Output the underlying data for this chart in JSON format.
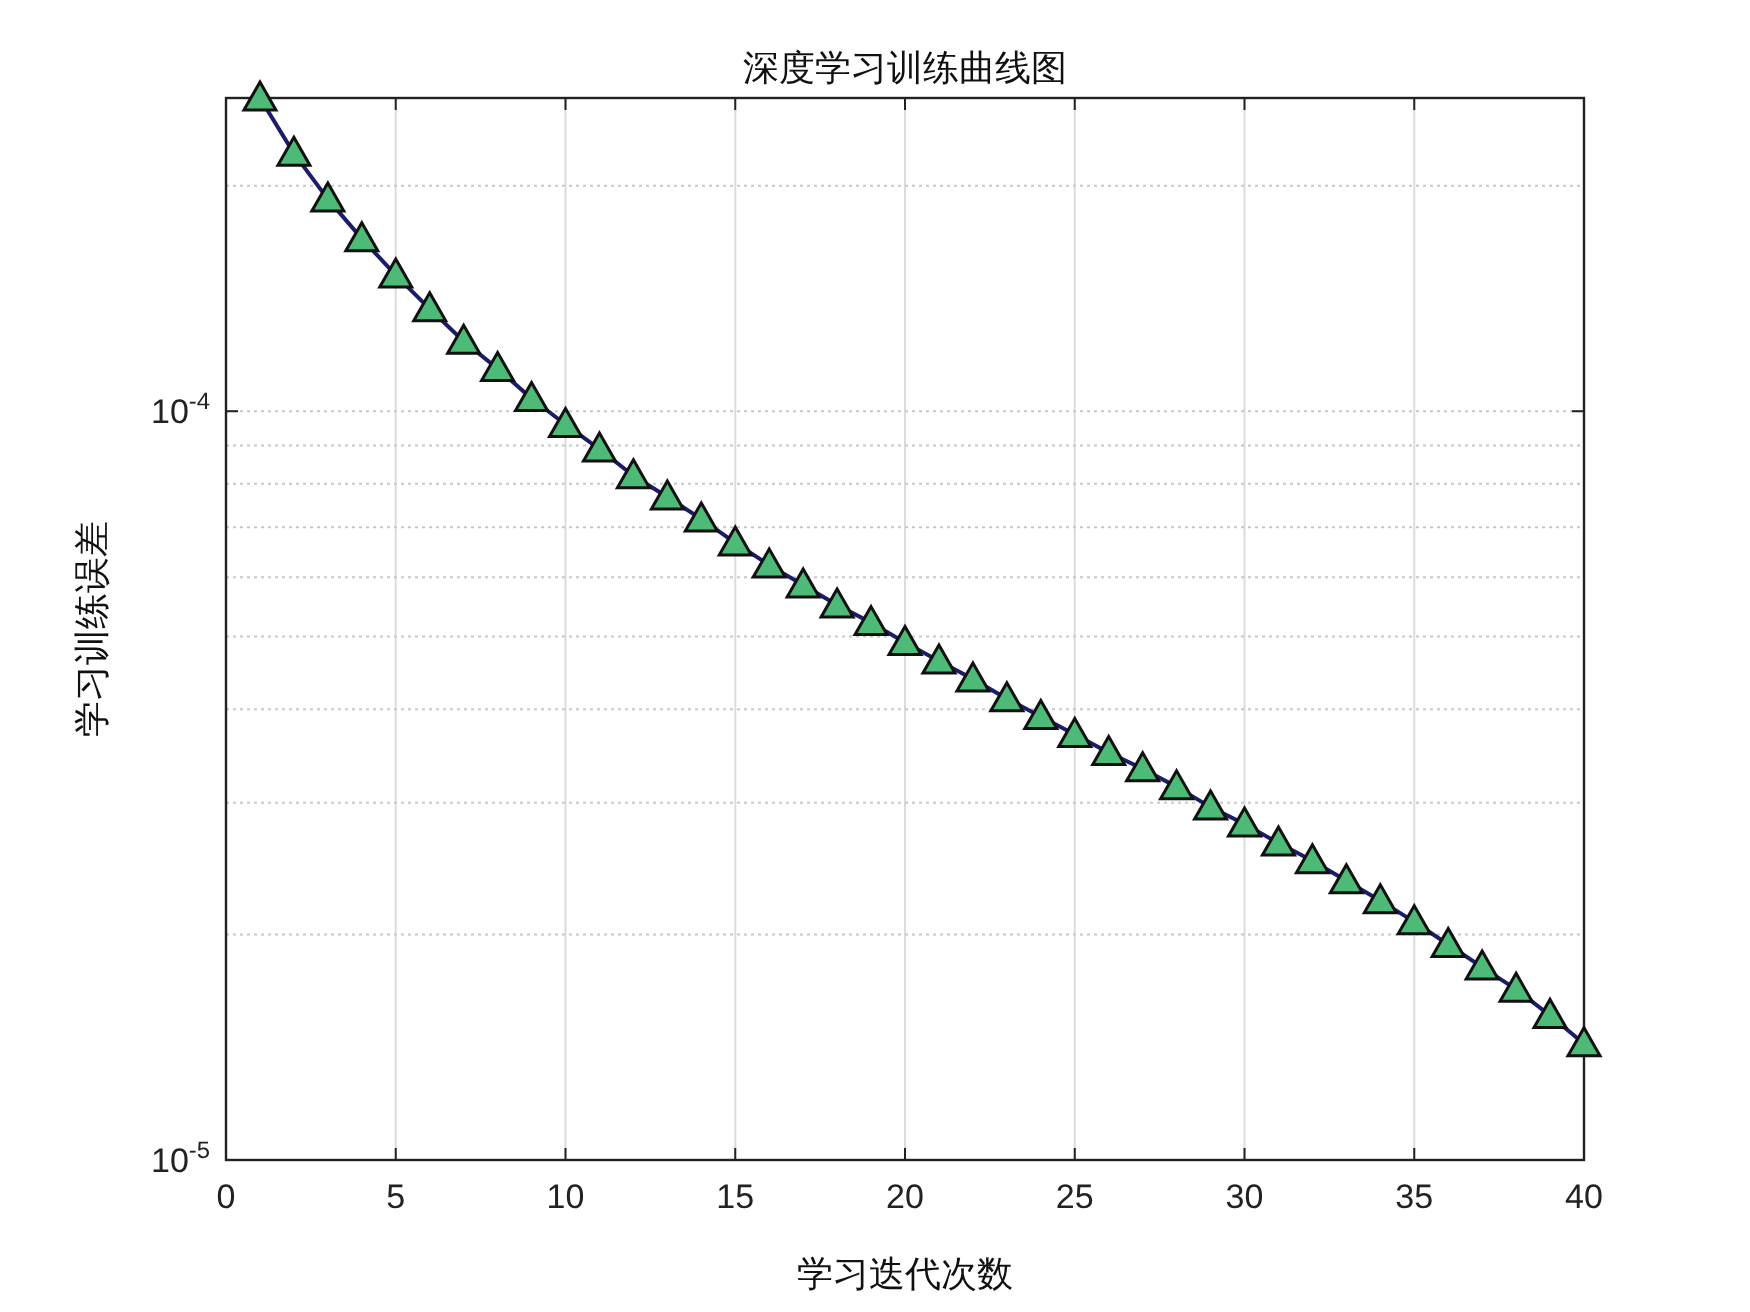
{
  "chart_data": {
    "type": "line",
    "title": "深度学习训练曲线图",
    "xlabel": "学习迭代次数",
    "ylabel": "学习训练误差",
    "x": [
      1,
      2,
      3,
      4,
      5,
      6,
      7,
      8,
      9,
      10,
      11,
      12,
      13,
      14,
      15,
      16,
      17,
      18,
      19,
      20,
      21,
      22,
      23,
      24,
      25,
      26,
      27,
      28,
      29,
      30,
      31,
      32,
      33,
      34,
      35,
      36,
      37,
      38,
      39,
      40
    ],
    "series": [
      {
        "color": "#1c1c6b",
        "values": [
          0.000262,
          0.000221,
          0.000192,
          0.00017,
          0.000152,
          0.000137,
          0.000124,
          0.000114,
          0.000104,
          9.6e-05,
          8.9e-05,
          8.2e-05,
          7.68e-05,
          7.18e-05,
          6.67e-05,
          6.23e-05,
          5.86e-05,
          5.51e-05,
          5.22e-05,
          4.91e-05,
          4.64e-05,
          4.39e-05,
          4.13e-05,
          3.91e-05,
          3.7e-05,
          3.5e-05,
          3.33e-05,
          3.15e-05,
          2.96e-05,
          2.81e-05,
          2.65e-05,
          2.51e-05,
          2.36e-05,
          2.22e-05,
          2.08e-05,
          1.94e-05,
          1.81e-05,
          1.69e-05,
          1.56e-05,
          1.43e-05
        ]
      }
    ],
    "xlim": [
      0,
      40
    ],
    "xticks": [
      0,
      5,
      10,
      15,
      20,
      25,
      30,
      35,
      40
    ],
    "ylim": [
      1e-05,
      0.000262
    ],
    "yticks": [
      {
        "value": 1e-05,
        "label": "10$^{-5}$"
      },
      {
        "value": 0.0001,
        "label": "10$^{-4}$"
      }
    ],
    "log": "y",
    "grid": true,
    "marker": "triangle",
    "line_style": "solid"
  }
}
